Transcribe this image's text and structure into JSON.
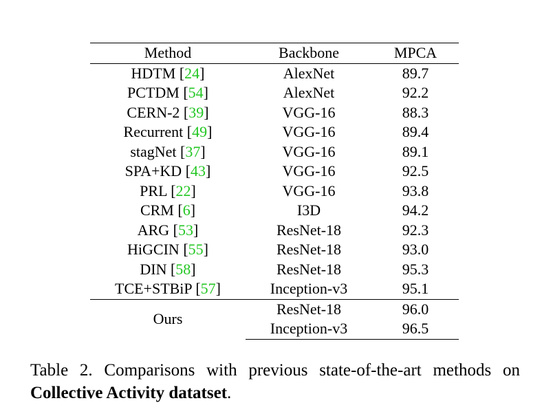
{
  "table": {
    "headers": {
      "method": "Method",
      "backbone": "Backbone",
      "mpca": "MPCA"
    },
    "rows": [
      {
        "method": "HDTM",
        "ref": "24",
        "backbone": "AlexNet",
        "mpca": "89.7"
      },
      {
        "method": "PCTDM",
        "ref": "54",
        "backbone": "AlexNet",
        "mpca": "92.2"
      },
      {
        "method": "CERN-2",
        "ref": "39",
        "backbone": "VGG-16",
        "mpca": "88.3"
      },
      {
        "method": "Recurrent",
        "ref": "49",
        "backbone": "VGG-16",
        "mpca": "89.4"
      },
      {
        "method": "stagNet",
        "ref": "37",
        "backbone": "VGG-16",
        "mpca": "89.1"
      },
      {
        "method": "SPA+KD",
        "ref": "43",
        "backbone": "VGG-16",
        "mpca": "92.5"
      },
      {
        "method": "PRL",
        "ref": "22",
        "backbone": "VGG-16",
        "mpca": "93.8"
      },
      {
        "method": "CRM",
        "ref": "6",
        "backbone": "I3D",
        "mpca": "94.2"
      },
      {
        "method": "ARG",
        "ref": "53",
        "backbone": "ResNet-18",
        "mpca": "92.3"
      },
      {
        "method": "HiGCIN",
        "ref": "55",
        "backbone": "ResNet-18",
        "mpca": "93.0"
      },
      {
        "method": "DIN",
        "ref": "58",
        "backbone": "ResNet-18",
        "mpca": "95.3"
      },
      {
        "method": "TCE+STBiP",
        "ref": "57",
        "backbone": "Inception-v3",
        "mpca": "95.1"
      }
    ],
    "ours": {
      "method": "Ours",
      "rows": [
        {
          "backbone": "ResNet-18",
          "mpca": "96.0"
        },
        {
          "backbone": "Inception-v3",
          "mpca": "96.5"
        }
      ]
    }
  },
  "caption": {
    "line1_words": [
      "Table",
      "2.",
      "Comparisons",
      "with",
      "previous",
      "state-of-the-art",
      "methods",
      "on"
    ],
    "bold": "Collective Activity datatset",
    "end": "."
  },
  "colors": {
    "citation": "#22c622",
    "text": "#000000",
    "background": "#ffffff"
  }
}
